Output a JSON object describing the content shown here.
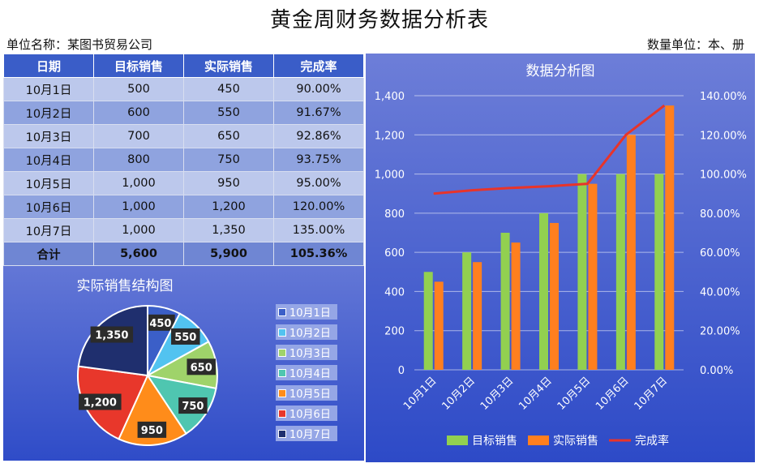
{
  "header": {
    "title": "黄金周财务数据分析表",
    "unit_left": "单位名称：某图书贸易公司",
    "unit_right": "数量单位：本、册"
  },
  "table": {
    "columns": [
      "日期",
      "目标销售",
      "实际销售",
      "完成率"
    ],
    "rows": [
      [
        "10月1日",
        "500",
        "450",
        "90.00%"
      ],
      [
        "10月2日",
        "600",
        "550",
        "91.67%"
      ],
      [
        "10月3日",
        "700",
        "650",
        "92.86%"
      ],
      [
        "10月4日",
        "800",
        "750",
        "93.75%"
      ],
      [
        "10月5日",
        "1,000",
        "950",
        "95.00%"
      ],
      [
        "10月6日",
        "1,000",
        "1,200",
        "120.00%"
      ],
      [
        "10月7日",
        "1,000",
        "1,350",
        "135.00%"
      ]
    ],
    "total": [
      "合计",
      "5,600",
      "5,900",
      "105.36%"
    ]
  },
  "colors": {
    "target": "#92d050",
    "actual": "#ff7f1f",
    "rate": "#e8342a"
  },
  "chart_data": [
    {
      "type": "pie",
      "title": "实际销售结构图",
      "categories": [
        "10月1日",
        "10月2日",
        "10月3日",
        "10月4日",
        "10月5日",
        "10月6日",
        "10月7日"
      ],
      "values": [
        450,
        550,
        650,
        750,
        950,
        1200,
        1350
      ],
      "labels": [
        "450",
        "550",
        "650",
        "750",
        "950",
        "1,200",
        "1,350"
      ],
      "colors": [
        "#3b5fc8",
        "#52c3f0",
        "#9fd36a",
        "#4fc6b0",
        "#ff8c1a",
        "#e8372b",
        "#1f2f6e"
      ],
      "legend": "right"
    },
    {
      "type": "bar",
      "title": "数据分析图",
      "categories": [
        "10月1日",
        "10月2日",
        "10月3日",
        "10月4日",
        "10月5日",
        "10月6日",
        "10月7日"
      ],
      "series": [
        {
          "name": "目标销售",
          "type": "bar",
          "values": [
            500,
            600,
            700,
            800,
            1000,
            1000,
            1000
          ]
        },
        {
          "name": "实际销售",
          "type": "bar",
          "values": [
            450,
            550,
            650,
            750,
            950,
            1200,
            1350
          ]
        },
        {
          "name": "完成率",
          "type": "line",
          "axis": "right",
          "values": [
            90.0,
            91.67,
            92.86,
            93.75,
            95.0,
            120.0,
            135.0
          ]
        }
      ],
      "ylim": [
        0,
        1400
      ],
      "yticks": [
        "0",
        "200",
        "400",
        "600",
        "800",
        "1,000",
        "1,200",
        "1,400"
      ],
      "y2lim": [
        0,
        140
      ],
      "y2ticks": [
        "0.00%",
        "20.00%",
        "40.00%",
        "60.00%",
        "80.00%",
        "100.00%",
        "120.00%",
        "140.00%"
      ],
      "grid": true,
      "legend": "bottom"
    }
  ]
}
